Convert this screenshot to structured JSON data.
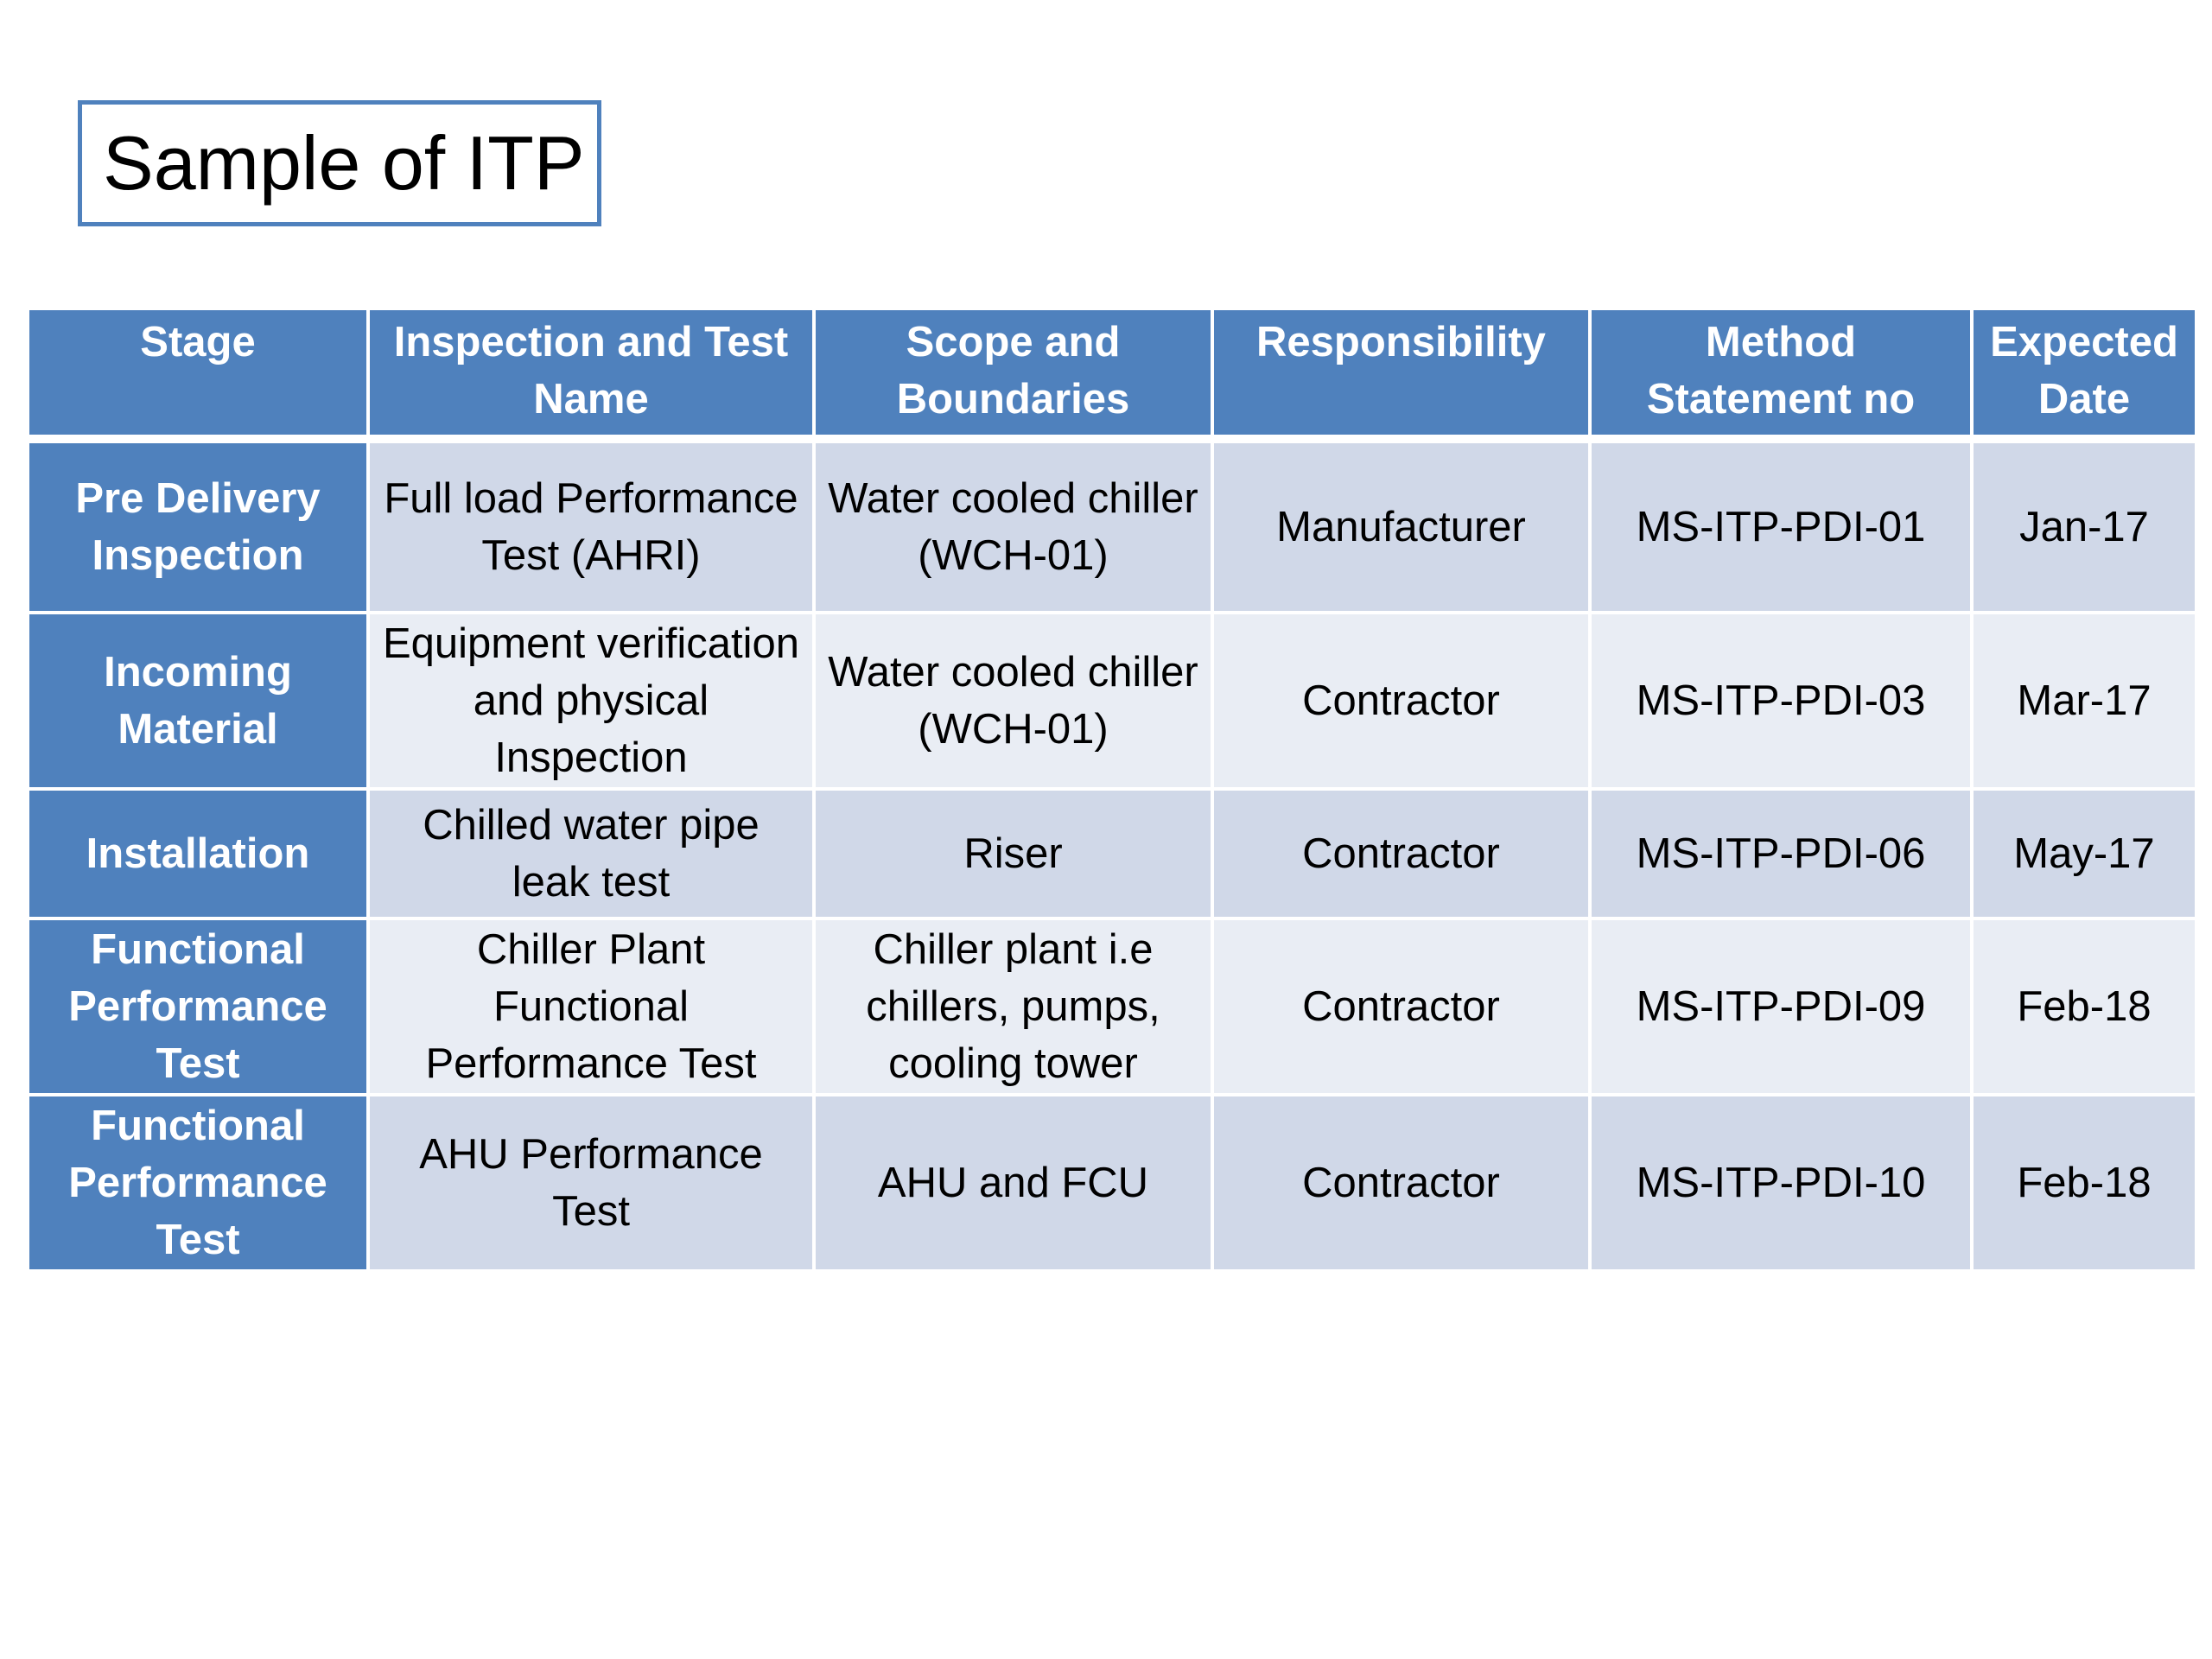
{
  "header": {
    "title": "Sample of ITP"
  },
  "table": {
    "headers": [
      "Stage",
      "Inspection and Test Name",
      "Scope and Boundaries",
      "Responsibility",
      "Method Statement no",
      "Expected Date"
    ],
    "rows": [
      [
        "Pre Delivery Inspection",
        "Full load Performance Test (AHRI)",
        "Water cooled chiller (WCH-01)",
        "Manufacturer",
        "MS-ITP-PDI-01",
        "Jan-17"
      ],
      [
        "Incoming Material",
        "Equipment verification and physical Inspection",
        "Water cooled chiller (WCH-01)",
        "Contractor",
        "MS-ITP-PDI-03",
        "Mar-17"
      ],
      [
        "Installation",
        "Chilled water pipe leak test",
        "Riser",
        "Contractor",
        "MS-ITP-PDI-06",
        "May-17"
      ],
      [
        "Functional Performance Test",
        "Chiller Plant Functional Performance Test",
        "Chiller plant i.e chillers, pumps, cooling tower",
        "Contractor",
        "MS-ITP-PDI-09",
        "Feb-18"
      ],
      [
        "Functional Performance Test",
        "AHU Performance Test",
        "AHU and FCU",
        "Contractor",
        "MS-ITP-PDI-10",
        "Feb-18"
      ]
    ]
  }
}
